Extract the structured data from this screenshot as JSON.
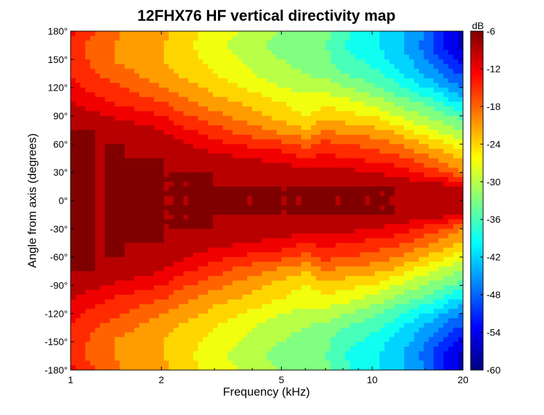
{
  "chart_data": {
    "type": "heatmap",
    "title": "12FHX76 HF vertical directivity map",
    "xlabel": "Frequency (kHz)",
    "ylabel": "Angle from axis (degrees)",
    "x_scale": "log",
    "xlim": [
      1,
      20
    ],
    "ylim": [
      -180,
      180
    ],
    "x_ticks": [
      1,
      2,
      5,
      10,
      20
    ],
    "x_tick_labels": [
      "1",
      "2",
      "5",
      "10",
      "20"
    ],
    "y_ticks": [
      180,
      150,
      120,
      90,
      60,
      30,
      0,
      -30,
      -60,
      -90,
      -120,
      -150,
      -180
    ],
    "y_tick_labels": [
      "180°",
      "150°",
      "120°",
      "90°",
      "60°",
      "30°",
      "0°",
      "-30°",
      "-60°",
      "-90°",
      "-120°",
      "-150°",
      "-180°"
    ],
    "colorbar": {
      "label": "dB",
      "range": [
        -60,
        -6
      ],
      "ticks": [
        -6,
        -12,
        -18,
        -24,
        -30,
        -36,
        -42,
        -48,
        -54,
        -60
      ],
      "tick_labels": [
        "-6",
        "-12",
        "-18",
        "-24",
        "-30",
        "-36",
        "-42",
        "-48",
        "-54",
        "-60"
      ],
      "colormap": "jet"
    },
    "contour_interval_db": 3,
    "frequencies_khz": [
      1,
      1.2,
      1.5,
      2,
      2.5,
      3,
      4,
      5,
      6,
      7,
      8,
      10,
      12,
      14,
      16,
      18,
      20
    ],
    "angles_deg": [
      0,
      15,
      30,
      45,
      60,
      75,
      90,
      105,
      120,
      135,
      150,
      165,
      180
    ],
    "levels_db": [
      [
        -6,
        -6,
        -6,
        -6,
        -6,
        -6,
        -6,
        -6,
        -6,
        -6,
        -6,
        -6,
        -6,
        -6,
        -6,
        -6,
        -6
      ],
      [
        -6,
        -6,
        -6,
        -6,
        -6,
        -6,
        -6,
        -6,
        -6,
        -6,
        -6,
        -6,
        -6,
        -7,
        -7,
        -8,
        -9
      ],
      [
        -6,
        -6,
        -6,
        -6,
        -6,
        -6,
        -7,
        -7,
        -8,
        -8,
        -8,
        -9,
        -10,
        -12,
        -14,
        -16,
        -18
      ],
      [
        -6,
        -6,
        -6,
        -6,
        -7,
        -8,
        -9,
        -10,
        -12,
        -11,
        -12,
        -13,
        -14,
        -16,
        -18,
        -20,
        -22
      ],
      [
        -6,
        -6,
        -6,
        -7,
        -9,
        -11,
        -13,
        -14,
        -16,
        -14,
        -15,
        -16,
        -18,
        -20,
        -22,
        -24,
        -26
      ],
      [
        -6,
        -6,
        -7,
        -9,
        -12,
        -14,
        -17,
        -19,
        -21,
        -18,
        -19,
        -20,
        -22,
        -25,
        -27,
        -29,
        -30
      ],
      [
        -7,
        -8,
        -10,
        -12,
        -15,
        -17,
        -20,
        -22,
        -24,
        -22,
        -23,
        -24,
        -27,
        -29,
        -31,
        -33,
        -34
      ],
      [
        -9,
        -11,
        -13,
        -15,
        -18,
        -20,
        -22,
        -24,
        -26,
        -25,
        -26,
        -28,
        -31,
        -33,
        -35,
        -38,
        -40
      ],
      [
        -11,
        -13,
        -15,
        -18,
        -20,
        -22,
        -25,
        -27,
        -28,
        -28,
        -30,
        -32,
        -35,
        -38,
        -40,
        -43,
        -45
      ],
      [
        -12,
        -15,
        -17,
        -20,
        -22,
        -24,
        -27,
        -29,
        -30,
        -31,
        -33,
        -35,
        -38,
        -41,
        -44,
        -47,
        -48
      ],
      [
        -13,
        -16,
        -19,
        -21,
        -23,
        -25,
        -28,
        -30,
        -31,
        -32,
        -35,
        -37,
        -40,
        -43,
        -47,
        -50,
        -52
      ],
      [
        -14,
        -16,
        -19,
        -21,
        -24,
        -26,
        -29,
        -31,
        -32,
        -33,
        -36,
        -38,
        -41,
        -44,
        -49,
        -53,
        -55
      ],
      [
        -10,
        -15,
        -18,
        -20,
        -23,
        -25,
        -28,
        -30,
        -31,
        -32,
        -35,
        -38,
        -41,
        -43,
        -47,
        -52,
        -55
      ]
    ]
  }
}
